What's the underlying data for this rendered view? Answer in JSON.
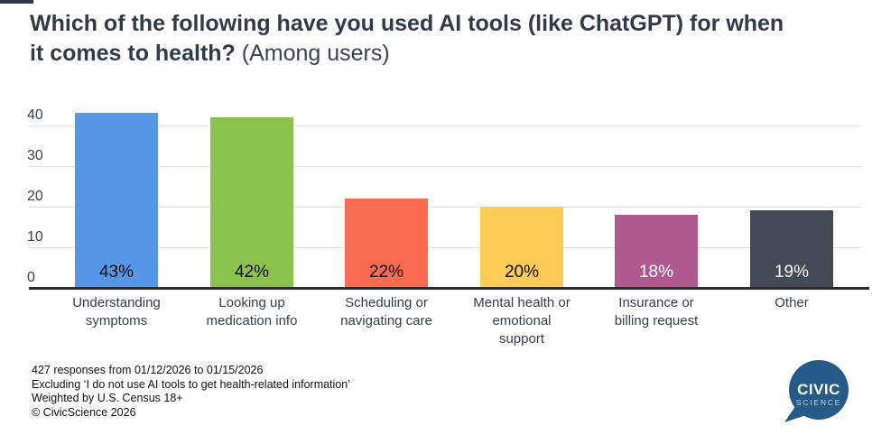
{
  "page": {
    "background": "#ffffff",
    "corner_mark_color": "#2e3545"
  },
  "title": {
    "line1_bold": "Which of the following have you used AI tools (like ChatGPT) for when",
    "line2_bold": "it comes to health?",
    "line2_normal": "(Among users)"
  },
  "chart_data": {
    "type": "bar",
    "title": "Which of the following have you used AI tools (like ChatGPT) for when it comes to health? (Among users)",
    "categories": [
      "Understanding symptoms",
      "Looking up medication info",
      "Scheduling or navigating care",
      "Mental health or emotional support",
      "Insurance or billing request",
      "Other"
    ],
    "category_lines": [
      [
        "Understanding",
        "symptoms"
      ],
      [
        "Looking up",
        "medication info"
      ],
      [
        "Scheduling or",
        "navigating care"
      ],
      [
        "Mental health or",
        "emotional",
        "support"
      ],
      [
        "Insurance or",
        "billing request"
      ],
      [
        "Other"
      ]
    ],
    "values": [
      43,
      42,
      22,
      20,
      18,
      19
    ],
    "value_labels": [
      "43%",
      "42%",
      "22%",
      "20%",
      "18%",
      "19%"
    ],
    "bar_colors": [
      "#5596e6",
      "#8bc24d",
      "#fa6b50",
      "#fdcb56",
      "#b0588f",
      "#434a55"
    ],
    "value_label_colors": [
      "#0c0c0c",
      "#0c0c0c",
      "#0c0c0c",
      "#0c0c0c",
      "#ffffff",
      "#ffffff"
    ],
    "xlabel": "",
    "ylabel": "",
    "y_ticks": [
      0,
      10,
      20,
      30,
      40
    ],
    "ylim": [
      0,
      46
    ],
    "grid": true,
    "legend": "none",
    "gridline_color": "#e2e2e2",
    "axis_line_color": "#2d2d2d",
    "tick_label_color": "#3c434d",
    "category_label_color": "#363e4b"
  },
  "footer": {
    "lines": [
      "427 responses from 01/12/2026 to 01/15/2026",
      "Excluding ‘I do not use AI tools to get health-related information’",
      "Weighted by U.S. Census 18+",
      "© CivicScience 2026"
    ]
  },
  "logo": {
    "line1": "CIVIC",
    "line2": "SCIENCE",
    "bubble_color": "#265a88",
    "text_color": "#ffffff",
    "subtext_color": "#c9d3dc"
  }
}
